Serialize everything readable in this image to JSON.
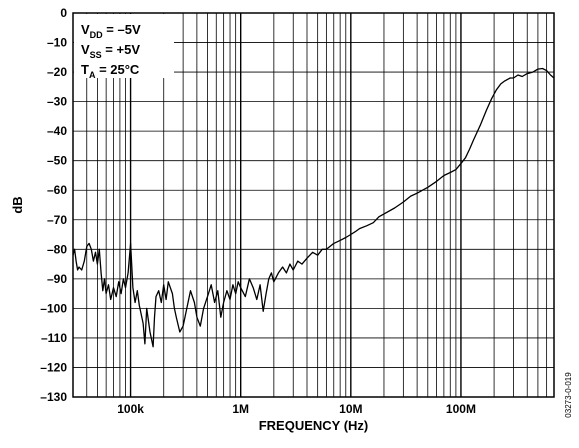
{
  "chart_data": {
    "type": "line",
    "xlabel": "FREQUENCY (Hz)",
    "ylabel": "dB",
    "x_scale": "log",
    "xlim": [
      30000,
      700000000
    ],
    "ylim": [
      -130,
      0
    ],
    "grid": true,
    "y_ticks": [
      0,
      -10,
      -20,
      -30,
      -40,
      -50,
      -60,
      -70,
      -80,
      -90,
      -100,
      -110,
      -120,
      -130
    ],
    "y_tick_labels": [
      "0",
      "–10",
      "–20",
      "–30",
      "–40",
      "–50",
      "–60",
      "–70",
      "–80",
      "–90",
      "–100",
      "–110",
      "–120",
      "–130"
    ],
    "x_ticks": [
      100000,
      1000000,
      10000000,
      100000000
    ],
    "x_tick_labels": [
      "100k",
      "1M",
      "10M",
      "100M"
    ],
    "conditions": [
      {
        "main": "V",
        "sub": "DD",
        "rest": " = –5V"
      },
      {
        "main": "V",
        "sub": "SS",
        "rest": " = +5V"
      },
      {
        "main": "T",
        "sub": "A",
        "rest": " = 25°C"
      }
    ],
    "figure_code": "03273-0-019",
    "series": [
      {
        "values": [
          [
            30000,
            -82
          ],
          [
            31000,
            -80
          ],
          [
            32000,
            -84
          ],
          [
            33000,
            -87
          ],
          [
            34000,
            -86
          ],
          [
            36000,
            -87
          ],
          [
            38000,
            -84
          ],
          [
            40000,
            -79
          ],
          [
            42000,
            -78
          ],
          [
            44000,
            -80
          ],
          [
            46000,
            -84
          ],
          [
            48000,
            -81
          ],
          [
            50000,
            -85
          ],
          [
            52000,
            -80
          ],
          [
            54000,
            -88
          ],
          [
            56000,
            -94
          ],
          [
            58000,
            -90
          ],
          [
            60000,
            -95
          ],
          [
            63000,
            -92
          ],
          [
            66000,
            -97
          ],
          [
            70000,
            -93
          ],
          [
            74000,
            -96
          ],
          [
            78000,
            -91
          ],
          [
            82000,
            -95
          ],
          [
            86000,
            -90
          ],
          [
            90000,
            -93
          ],
          [
            95000,
            -88
          ],
          [
            100000,
            -78
          ],
          [
            105000,
            -93
          ],
          [
            110000,
            -98
          ],
          [
            115000,
            -94
          ],
          [
            120000,
            -99
          ],
          [
            130000,
            -105
          ],
          [
            135000,
            -112
          ],
          [
            140000,
            -100
          ],
          [
            150000,
            -108
          ],
          [
            160000,
            -113
          ],
          [
            165000,
            -103
          ],
          [
            170000,
            -96
          ],
          [
            180000,
            -94
          ],
          [
            190000,
            -98
          ],
          [
            200000,
            -92
          ],
          [
            210000,
            -97
          ],
          [
            220000,
            -91
          ],
          [
            240000,
            -95
          ],
          [
            250000,
            -100
          ],
          [
            260000,
            -103
          ],
          [
            280000,
            -108
          ],
          [
            300000,
            -106
          ],
          [
            320000,
            -101
          ],
          [
            350000,
            -94
          ],
          [
            380000,
            -98
          ],
          [
            400000,
            -103
          ],
          [
            430000,
            -106
          ],
          [
            460000,
            -100
          ],
          [
            500000,
            -96
          ],
          [
            540000,
            -92
          ],
          [
            580000,
            -98
          ],
          [
            620000,
            -94
          ],
          [
            660000,
            -103
          ],
          [
            700000,
            -98
          ],
          [
            750000,
            -94
          ],
          [
            800000,
            -97
          ],
          [
            850000,
            -92
          ],
          [
            900000,
            -95
          ],
          [
            950000,
            -91
          ],
          [
            1000000,
            -93
          ],
          [
            1100000,
            -96
          ],
          [
            1200000,
            -90
          ],
          [
            1300000,
            -93
          ],
          [
            1400000,
            -97
          ],
          [
            1500000,
            -92
          ],
          [
            1600000,
            -101
          ],
          [
            1700000,
            -95
          ],
          [
            1800000,
            -90
          ],
          [
            1900000,
            -88
          ],
          [
            2000000,
            -91
          ],
          [
            2200000,
            -88
          ],
          [
            2400000,
            -86
          ],
          [
            2600000,
            -88
          ],
          [
            2800000,
            -85
          ],
          [
            3000000,
            -87
          ],
          [
            3300000,
            -84
          ],
          [
            3600000,
            -85
          ],
          [
            4000000,
            -83
          ],
          [
            4500000,
            -81
          ],
          [
            5000000,
            -82
          ],
          [
            5500000,
            -80
          ],
          [
            6000000,
            -80
          ],
          [
            7000000,
            -78
          ],
          [
            8000000,
            -77
          ],
          [
            9000000,
            -76
          ],
          [
            10000000,
            -75
          ],
          [
            11000000,
            -74
          ],
          [
            12000000,
            -73
          ],
          [
            14000000,
            -72
          ],
          [
            16000000,
            -71
          ],
          [
            18000000,
            -69
          ],
          [
            20000000,
            -68
          ],
          [
            25000000,
            -66
          ],
          [
            30000000,
            -64
          ],
          [
            35000000,
            -62
          ],
          [
            40000000,
            -61
          ],
          [
            50000000,
            -59
          ],
          [
            60000000,
            -57
          ],
          [
            70000000,
            -55
          ],
          [
            80000000,
            -54
          ],
          [
            90000000,
            -53
          ],
          [
            100000000,
            -51
          ],
          [
            110000000,
            -49
          ],
          [
            120000000,
            -46
          ],
          [
            130000000,
            -43
          ],
          [
            150000000,
            -38
          ],
          [
            170000000,
            -33
          ],
          [
            190000000,
            -29
          ],
          [
            210000000,
            -26
          ],
          [
            230000000,
            -24
          ],
          [
            250000000,
            -23
          ],
          [
            280000000,
            -22
          ],
          [
            300000000,
            -22
          ],
          [
            330000000,
            -21
          ],
          [
            360000000,
            -21.5
          ],
          [
            400000000,
            -20.5
          ],
          [
            450000000,
            -20
          ],
          [
            500000000,
            -19
          ],
          [
            550000000,
            -18.8
          ],
          [
            600000000,
            -19.5
          ],
          [
            650000000,
            -21
          ],
          [
            700000000,
            -22
          ]
        ]
      }
    ]
  }
}
